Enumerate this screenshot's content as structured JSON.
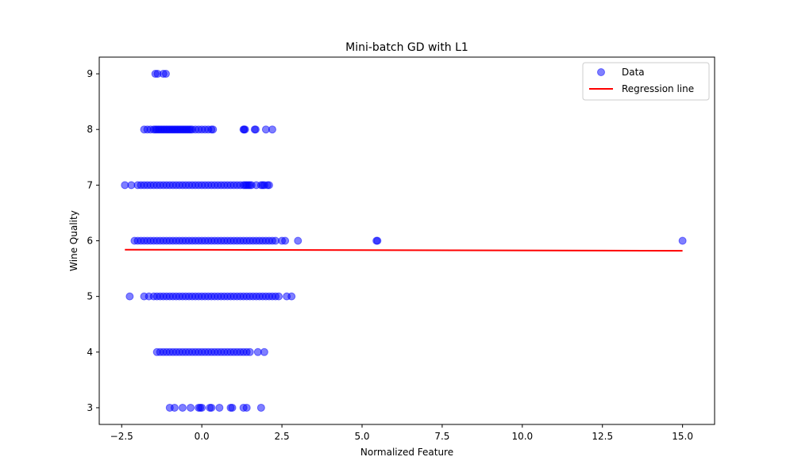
{
  "chart_data": {
    "type": "scatter",
    "title": "Mini-batch GD with L1",
    "xlabel": "Normalized Feature",
    "ylabel": "Wine Quality",
    "xlim": [
      -3.2,
      16.0
    ],
    "ylim": [
      2.7,
      9.3
    ],
    "xticks": [
      -2.5,
      0.0,
      2.5,
      5.0,
      7.5,
      10.0,
      12.5,
      15.0
    ],
    "xtick_labels": [
      "−2.5",
      "0.0",
      "2.5",
      "5.0",
      "7.5",
      "10.0",
      "12.5",
      "15.0"
    ],
    "yticks": [
      3,
      4,
      5,
      6,
      7,
      8,
      9
    ],
    "ytick_labels": [
      "3",
      "4",
      "5",
      "6",
      "7",
      "8",
      "9"
    ],
    "grid": false,
    "legend_position": "top-right",
    "series": [
      {
        "name": "Data",
        "kind": "scatter",
        "color": "#0000ff",
        "alpha": 0.5,
        "points": [
          {
            "y": 9,
            "x": [
              -1.45,
              -1.38,
              -1.2,
              -1.12
            ]
          },
          {
            "y": 8,
            "x": [
              -1.8,
              -1.7,
              -1.6,
              -1.5,
              -1.45,
              -1.4,
              -1.35,
              -1.3,
              -1.25,
              -1.2,
              -1.15,
              -1.1,
              -1.05,
              -1.0,
              -0.95,
              -0.9,
              -0.85,
              -0.8,
              -0.75,
              -0.7,
              -0.65,
              -0.6,
              -0.55,
              -0.5,
              -0.45,
              -0.4,
              -0.35,
              -0.3,
              -0.2,
              -0.1,
              0.0,
              0.1,
              0.2,
              0.3,
              0.35,
              1.3,
              1.32,
              1.35,
              1.65,
              1.68,
              2.0,
              2.2
            ]
          },
          {
            "y": 7,
            "x": [
              -2.4,
              -2.2,
              -2.0,
              -1.9,
              -1.8,
              -1.7,
              -1.6,
              -1.5,
              -1.4,
              -1.3,
              -1.2,
              -1.1,
              -1.0,
              -0.9,
              -0.8,
              -0.7,
              -0.6,
              -0.5,
              -0.4,
              -0.3,
              -0.2,
              -0.1,
              0.0,
              0.1,
              0.2,
              0.3,
              0.4,
              0.5,
              0.6,
              0.7,
              0.8,
              0.9,
              1.0,
              1.1,
              1.2,
              1.3,
              1.35,
              1.4,
              1.45,
              1.5,
              1.55,
              1.7,
              1.85,
              1.9,
              1.95,
              2.05,
              2.1
            ]
          },
          {
            "y": 6,
            "x": [
              -2.1,
              -2.0,
              -1.9,
              -1.8,
              -1.7,
              -1.6,
              -1.5,
              -1.4,
              -1.3,
              -1.2,
              -1.1,
              -1.0,
              -0.9,
              -0.8,
              -0.7,
              -0.6,
              -0.5,
              -0.4,
              -0.3,
              -0.2,
              -0.1,
              0.0,
              0.1,
              0.2,
              0.3,
              0.4,
              0.5,
              0.6,
              0.7,
              0.8,
              0.9,
              1.0,
              1.1,
              1.2,
              1.3,
              1.4,
              1.5,
              1.6,
              1.7,
              1.8,
              1.9,
              2.0,
              2.1,
              2.2,
              2.3,
              2.5,
              2.6,
              3.0,
              5.45,
              5.48,
              15.0
            ]
          },
          {
            "y": 5,
            "x": [
              -2.25,
              -1.8,
              -1.65,
              -1.5,
              -1.4,
              -1.3,
              -1.2,
              -1.1,
              -1.0,
              -0.9,
              -0.8,
              -0.7,
              -0.6,
              -0.5,
              -0.4,
              -0.3,
              -0.2,
              -0.1,
              0.0,
              0.1,
              0.2,
              0.3,
              0.4,
              0.5,
              0.6,
              0.7,
              0.8,
              0.9,
              1.0,
              1.1,
              1.2,
              1.3,
              1.4,
              1.5,
              1.6,
              1.7,
              1.8,
              1.9,
              2.0,
              2.1,
              2.2,
              2.3,
              2.4,
              2.65,
              2.8
            ]
          },
          {
            "y": 4,
            "x": [
              -1.4,
              -1.3,
              -1.2,
              -1.1,
              -1.0,
              -0.9,
              -0.8,
              -0.7,
              -0.6,
              -0.5,
              -0.4,
              -0.3,
              -0.2,
              -0.1,
              0.0,
              0.1,
              0.2,
              0.3,
              0.4,
              0.5,
              0.6,
              0.7,
              0.8,
              0.9,
              1.0,
              1.1,
              1.2,
              1.3,
              1.4,
              1.5,
              1.75,
              1.95
            ]
          },
          {
            "y": 3,
            "x": [
              -1.0,
              -0.85,
              -0.6,
              -0.35,
              -0.1,
              -0.05,
              0.0,
              0.25,
              0.3,
              0.55,
              0.9,
              0.95,
              1.3,
              1.4,
              1.85
            ]
          }
        ]
      },
      {
        "name": "Regression line",
        "kind": "line",
        "color": "#ff0000",
        "x": [
          -2.4,
          15.0
        ],
        "y": [
          5.84,
          5.82
        ]
      }
    ]
  }
}
